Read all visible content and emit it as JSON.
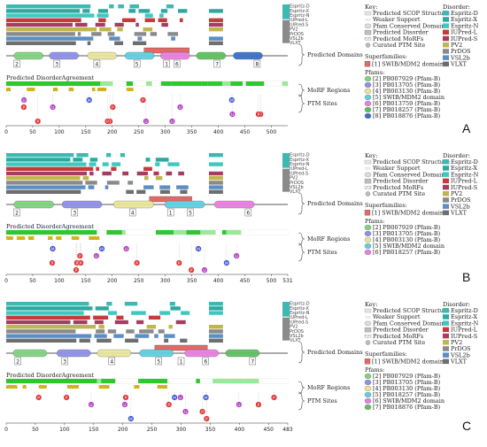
{
  "panels": [
    {
      "letter": "A",
      "length": 531,
      "axis_ticks": [
        0,
        50,
        100,
        150,
        200,
        250,
        300,
        350,
        400,
        450,
        500
      ],
      "predictors": [
        "Espritz-D",
        "Espritz-X",
        "Espritz-N",
        "IUPred-L",
        "IUPred-S",
        "PV2",
        "PrDOS",
        "VSL2b",
        "VLXT"
      ],
      "predicted_domains_label": "Predicted Domains",
      "agreement_label": "Predicted DisorderAgreement",
      "morf_label": "MoRF Regions",
      "ptm_label": "PTM Sites",
      "superfamily_box": {
        "start": 260,
        "end": 345
      },
      "domain_numbers": [
        "1",
        "2",
        "3",
        "4",
        "5",
        "6",
        "7",
        "8"
      ],
      "key": {
        "title": "Key:",
        "items": [
          "Predicted SCOP Structure",
          "Weaker Support",
          "Pfam Conserved Domain",
          "Predicted Disorder",
          "Predicted MoRFs",
          "Curated PTM Site"
        ],
        "superfamilies_title": "Superfamilies:",
        "superfamilies": [
          "[1] SWIB/MDM2 domain"
        ],
        "pfams_title": "Pfams:",
        "pfams": [
          "[2] PB007929 (Pfam-B)",
          "[3] PB013705 (Pfam-B)",
          "[4] PB003130 (Pfam-B)",
          "[5] SWIB/MDM2 domain",
          "[6] PB013759 (Pfam-B)",
          "[7] PB018257 (Pfam-B)",
          "[8] PB018876 (Pfam-B)"
        ]
      },
      "disorder": {
        "title": "Disorder:",
        "items": [
          "Espritz-D",
          "Espritz-X",
          "Espritz-N",
          "IUPred-L",
          "IUPred-S",
          "PV2",
          "PrDOS",
          "VSL2b",
          "VLXT"
        ]
      }
    },
    {
      "letter": "B",
      "length": 531,
      "axis_ticks": [
        0,
        50,
        100,
        150,
        200,
        250,
        300,
        350,
        400,
        450,
        500,
        "531"
      ],
      "predictors": [
        "Espritz-D",
        "Espritz-X",
        "Espritz-N",
        "IUPred-L",
        "IUPred-S",
        "PV2",
        "PrDOS",
        "VSL2b",
        "VLXT"
      ],
      "predicted_domains_label": "Predicted Domains",
      "agreement_label": "Predicted DisorderAgreement",
      "morf_label": "MoRF Regions",
      "ptm_label": "PTM Sites",
      "superfamily_box": {
        "start": 270,
        "end": 350
      },
      "domain_numbers": [
        "1",
        "2",
        "3",
        "4",
        "5",
        "6"
      ],
      "key": {
        "title": "Key:",
        "items": [
          "Predicted SCOP Structure",
          "Weaker Support",
          "Pfam Conserved Domain",
          "Predicted Disorder",
          "Predicted MoRFs",
          "Curated PTM Site"
        ],
        "superfamilies_title": "Superfamilies:",
        "superfamilies": [
          "[1] SWIB/MDM2 domain"
        ],
        "pfams_title": "Pfams:",
        "pfams": [
          "[2] PB007929 (Pfam-B)",
          "[3] PB013705 (Pfam-B)",
          "[4] PB003130 (Pfam-B)",
          "[5] SWIB/MDM2 domain",
          "[6] PB018257 (Pfam-B)"
        ]
      },
      "disorder": {
        "title": "Disorder:",
        "items": [
          "Espritz-D",
          "Espritz-X",
          "Espritz-N",
          "IUPred-L",
          "IUPred-S",
          "PV2",
          "PrDOS",
          "VSL2b",
          "VLXT"
        ]
      }
    },
    {
      "letter": "C",
      "length": 483,
      "axis_ticks": [
        0,
        50,
        100,
        150,
        200,
        250,
        300,
        350,
        400,
        450,
        "483"
      ],
      "predictors": [
        "Espritz-D",
        "Espritz-X",
        "Espritz-N",
        "IUPred-L",
        "IUPred-S",
        "PV2",
        "PrDOS",
        "VSL2b",
        "VLXT"
      ],
      "predicted_domains_label": "Predicted Domains",
      "agreement_label": "Predicted DisorderAgreement",
      "morf_label": "MoRF Regions",
      "ptm_label": "PTM Sites",
      "superfamily_box": {
        "start": 255,
        "end": 345
      },
      "domain_numbers": [
        "1",
        "2",
        "3",
        "4",
        "5",
        "6",
        "7"
      ],
      "key": {
        "title": "Key:",
        "items": [
          "Predicted SCOP Structure",
          "Weaker Support",
          "Pfam Conserved Domain",
          "Predicted Disorder",
          "Predicted MoRFs",
          "Curated PTM Site"
        ],
        "superfamilies_title": "Superfamilies:",
        "superfamilies": [
          "[1] SWIB/MDM2 domain"
        ],
        "pfams_title": "Pfams:",
        "pfams": [
          "[2] PB007929 (Pfam-B)",
          "[3] PB013705 (Pfam-B)",
          "[4] PB003130 (Pfam-B)",
          "[5] PB018257 (Pfam-B)",
          "[6] SWIB/MDM2 domain",
          "[7] PB018876 (Pfam-B)"
        ]
      },
      "disorder": {
        "title": "Disorder:",
        "items": [
          "Espritz-D",
          "Espritz-X",
          "Espritz-N",
          "IUPred-L",
          "IUPred-S",
          "PV2",
          "PrDOS",
          "VSL2b",
          "VLXT"
        ]
      }
    }
  ],
  "colors": {
    "disorder": [
      "#3cb9b3",
      "#2fa8a0",
      "#3dc9c0",
      "#c43b3b",
      "#a33e5f",
      "#c0b64f",
      "#8a8a8a",
      "#5b8fc4",
      "#6e6e6e"
    ],
    "pfam": [
      "#7fd37f",
      "#8f8fe8",
      "#e8e59a",
      "#5fcfe0",
      "#e87fe0",
      "#5fc05f",
      "#3a70c8",
      "#e08a8a"
    ],
    "superfamily": "#e06a66",
    "ptm_p": "#e03232",
    "ptm_u": "#b040c0",
    "ptm_m": "#3a50d0",
    "agreement": "#2ec82e",
    "morf": "#e2c21d"
  }
}
